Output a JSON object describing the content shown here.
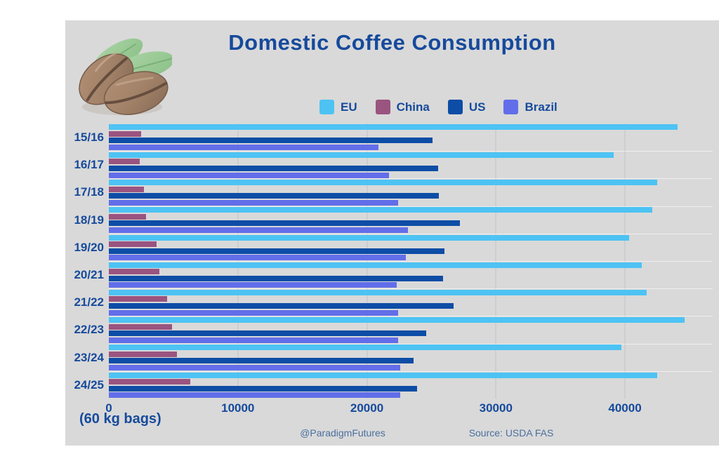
{
  "page": {
    "background_color": "#ffffff",
    "card_background_color": "#d9d9d9",
    "accent_text_color": "#164a9c"
  },
  "decoration": {
    "illustration": "coffee-beans-with-leaves"
  },
  "chart_data": {
    "type": "bar",
    "orientation": "horizontal",
    "title": "Domestic Coffee Consumption",
    "xlabel": "(60 kg bags)",
    "categories": [
      "15/16",
      "16/17",
      "17/18",
      "18/19",
      "19/20",
      "20/21",
      "21/22",
      "22/23",
      "23/24",
      "24/25"
    ],
    "series": [
      {
        "name": "EU",
        "color": "#4dc3f4",
        "values": [
          44100,
          39100,
          42500,
          42100,
          40300,
          41300,
          41700,
          44600,
          39700,
          42500
        ]
      },
      {
        "name": "China",
        "color": "#9a5480",
        "values": [
          2500,
          2400,
          2700,
          2900,
          3700,
          3900,
          4500,
          4900,
          5300,
          6300
        ]
      },
      {
        "name": "US",
        "color": "#0d4da6",
        "values": [
          25100,
          25500,
          25600,
          27200,
          26000,
          25900,
          26700,
          24600,
          23600,
          23900
        ]
      },
      {
        "name": "Brazil",
        "color": "#626ee9",
        "values": [
          20900,
          21700,
          22400,
          23200,
          23000,
          22300,
          22400,
          22400,
          22600,
          22600
        ]
      }
    ],
    "xticks": [
      0,
      10000,
      20000,
      30000,
      40000
    ],
    "xlim": [
      0,
      46800
    ],
    "grid": "vertical",
    "legend_position": "top-center"
  },
  "footer": {
    "handle": "@ParadigmFutures",
    "source": "Source: USDA FAS",
    "text_color": "#4a6f9f"
  }
}
